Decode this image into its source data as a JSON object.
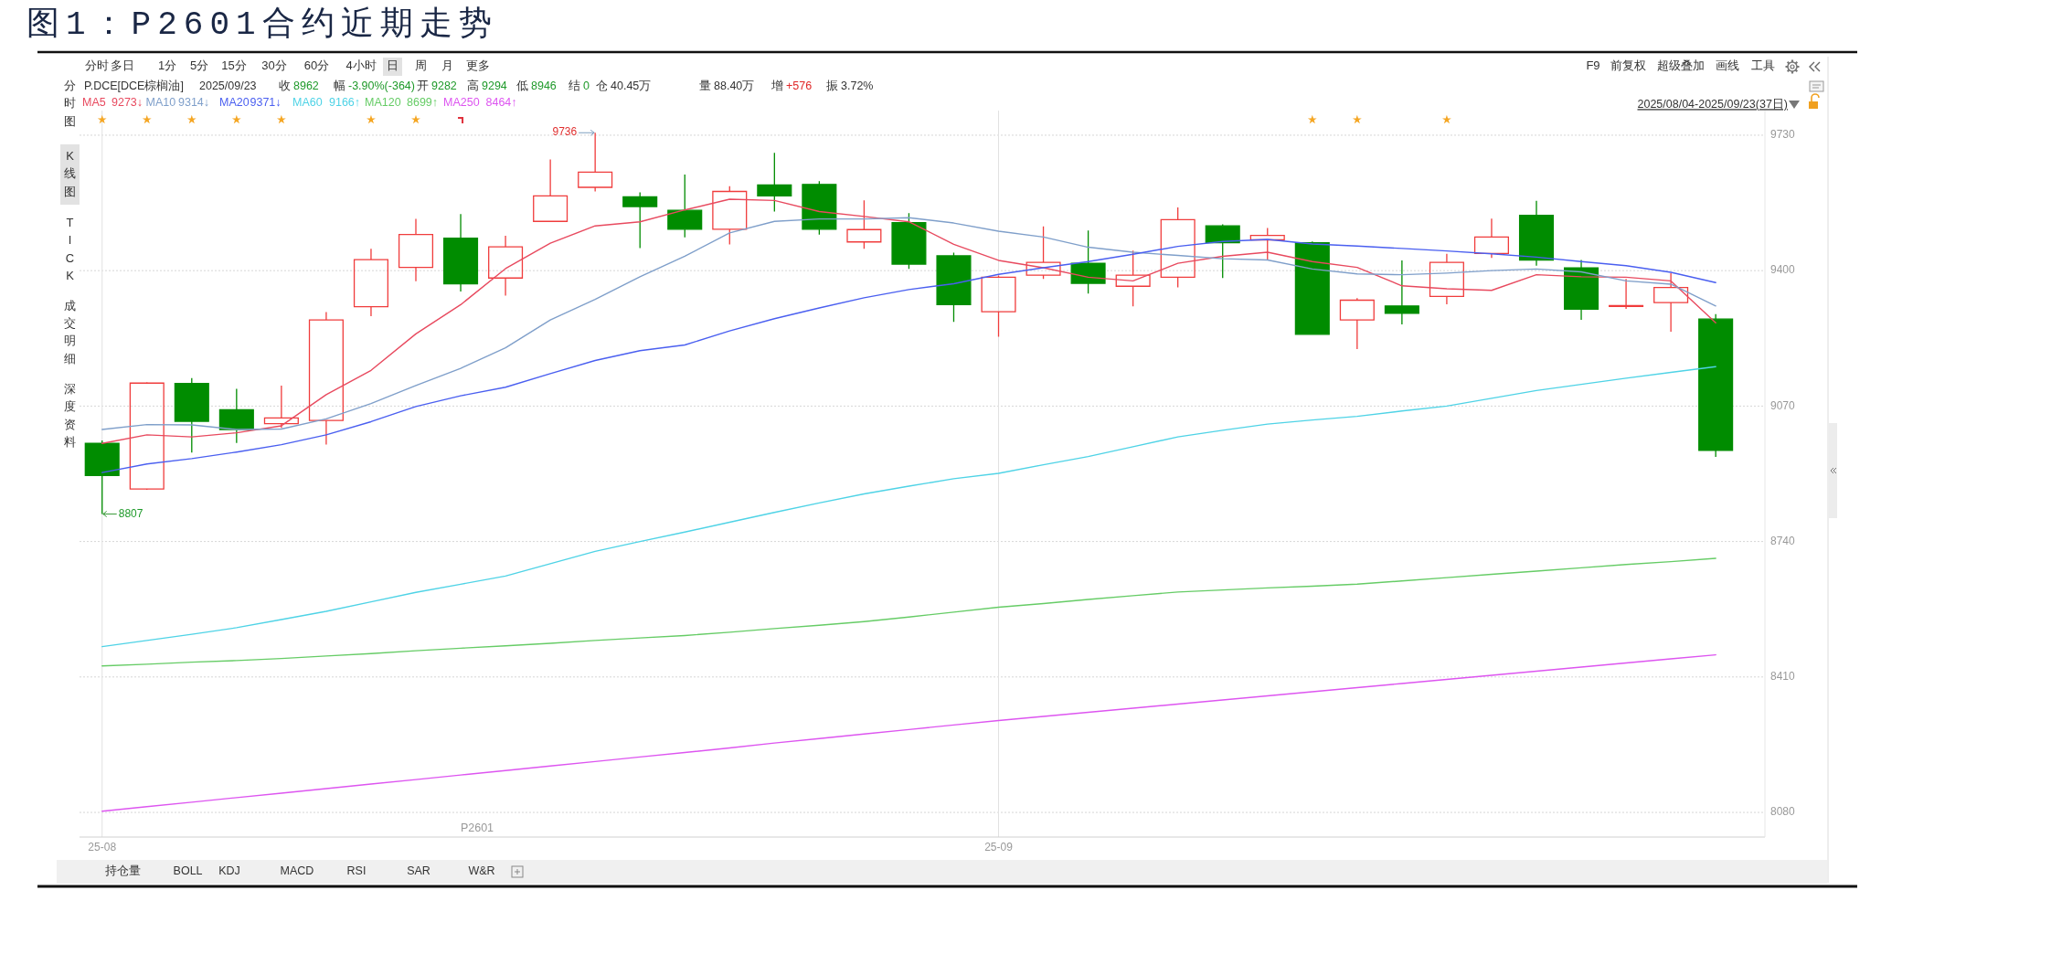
{
  "chart_data": {
    "type": "candlestick",
    "title": "图1：P2601合约近期走势",
    "categories": [
      "25-08",
      null,
      null,
      null,
      null,
      null,
      null,
      null,
      null,
      null,
      null,
      null,
      null,
      null,
      null,
      null,
      null,
      null,
      null,
      null,
      "25-09",
      null,
      null,
      null,
      null,
      null,
      null,
      null,
      null,
      null,
      null,
      null,
      null,
      null,
      null,
      null,
      null
    ],
    "ohlc": [
      [
        8979,
        8986,
        8807,
        8901
      ],
      [
        8868,
        9128,
        8866,
        9126
      ],
      [
        9125,
        9138,
        8957,
        9033
      ],
      [
        9061,
        9112,
        8980,
        9013
      ],
      [
        9027,
        9120,
        9017,
        9041
      ],
      [
        9035,
        9299,
        8976,
        9280
      ],
      [
        9312,
        9453,
        9289,
        9427
      ],
      [
        9408,
        9526,
        9374,
        9488
      ],
      [
        9479,
        9538,
        9349,
        9368
      ],
      [
        9382,
        9485,
        9339,
        9458
      ],
      [
        9520,
        9671,
        9520,
        9582
      ],
      [
        9603,
        9736,
        9593,
        9640
      ],
      [
        9580,
        9591,
        9455,
        9556
      ],
      [
        9547,
        9634,
        9481,
        9501
      ],
      [
        9501,
        9606,
        9464,
        9593
      ],
      [
        9609,
        9687,
        9544,
        9582
      ],
      [
        9610,
        9618,
        9488,
        9501
      ],
      [
        9470,
        9571,
        9453,
        9500
      ],
      [
        9517,
        9540,
        9404,
        9416
      ],
      [
        9436,
        9444,
        9275,
        9317
      ],
      [
        9300,
        9388,
        9239,
        9384
      ],
      [
        9389,
        9508,
        9380,
        9420
      ],
      [
        9418,
        9498,
        9344,
        9369
      ],
      [
        9362,
        9449,
        9313,
        9389
      ],
      [
        9384,
        9554,
        9359,
        9524
      ],
      [
        9509,
        9513,
        9382,
        9468
      ],
      [
        9475,
        9504,
        9427,
        9486
      ],
      [
        9468,
        9471,
        9245,
        9245
      ],
      [
        9280,
        9333,
        9209,
        9328
      ],
      [
        9314,
        9425,
        9269,
        9296
      ],
      [
        9337,
        9441,
        9318,
        9420
      ],
      [
        9442,
        9527,
        9431,
        9482
      ],
      [
        9535,
        9570,
        9412,
        9426
      ],
      [
        9407,
        9426,
        9280,
        9306
      ],
      [
        9313,
        9380,
        9307,
        9315
      ],
      [
        9322,
        9394,
        9251,
        9359
      ],
      [
        9282,
        9294,
        8946,
        8962
      ]
    ],
    "series": [
      {
        "name": "MA5",
        "type": "line",
        "color": "#e84a5f",
        "values": [
          8979,
          9000,
          8995,
          9005,
          9022,
          9098,
          9157,
          9246,
          9317,
          9405,
          9467,
          9509,
          9519,
          9548,
          9574,
          9571,
          9544,
          9532,
          9519,
          9464,
          9425,
          9407,
          9384,
          9375,
          9418,
          9435,
          9445,
          9422,
          9408,
          9363,
          9356,
          9352,
          9390,
          9385,
          9384,
          9375,
          9273
        ]
      },
      {
        "name": "MA10",
        "type": "line",
        "color": "#7f9fca",
        "values": [
          9013,
          9025,
          9024,
          9013,
          9014,
          9039,
          9076,
          9120,
          9162,
          9212,
          9280,
          9330,
          9385,
          9435,
          9492,
          9520,
          9526,
          9526,
          9529,
          9516,
          9496,
          9482,
          9457,
          9445,
          9437,
          9429,
          9426,
          9404,
          9392,
          9390,
          9394,
          9400,
          9404,
          9397,
          9375,
          9367,
          9314
        ]
      },
      {
        "name": "MA20",
        "type": "line",
        "color": "#4a5ff0",
        "values": [
          8908,
          8929,
          8942,
          8958,
          8976,
          9000,
          9032,
          9069,
          9095,
          9116,
          9149,
          9181,
          9205,
          9219,
          9253,
          9283,
          9309,
          9334,
          9354,
          9368,
          9391,
          9407,
          9422,
          9440,
          9459,
          9471,
          9476,
          9465,
          9460,
          9454,
          9448,
          9441,
          9433,
          9422,
          9412,
          9396,
          9371
        ]
      },
      {
        "name": "MA60",
        "type": "line",
        "color": "#4fd3e6",
        "values": [
          8484,
          8499,
          8514,
          8530,
          8550,
          8570,
          8593,
          8616,
          8636,
          8656,
          8686,
          8716,
          8740,
          8763,
          8787,
          8811,
          8834,
          8856,
          8875,
          8893,
          8906,
          8927,
          8947,
          8971,
          8995,
          9011,
          9026,
          9036,
          9045,
          9058,
          9070,
          9089,
          9108,
          9123,
          9138,
          9152,
          9166
        ]
      },
      {
        "name": "MA120",
        "type": "line",
        "color": "#66cc66",
        "values": [
          8437,
          8441,
          8446,
          8450,
          8455,
          8461,
          8467,
          8474,
          8480,
          8486,
          8492,
          8499,
          8505,
          8511,
          8519,
          8528,
          8536,
          8545,
          8556,
          8568,
          8580,
          8589,
          8599,
          8608,
          8617,
          8622,
          8627,
          8631,
          8636,
          8644,
          8652,
          8660,
          8668,
          8676,
          8684,
          8691,
          8699
        ]
      },
      {
        "name": "MA250",
        "type": "line",
        "color": "#dd55f0",
        "values": [
          8083,
          8094,
          8105,
          8116,
          8127,
          8138,
          8149,
          8160,
          8171,
          8182,
          8193,
          8204,
          8215,
          8226,
          8237,
          8249,
          8260,
          8271,
          8282,
          8293,
          8304,
          8314,
          8324,
          8334,
          8344,
          8354,
          8364,
          8374,
          8384,
          8394,
          8404,
          8414,
          8424,
          8434,
          8444,
          8454,
          8464
        ]
      }
    ],
    "ylim": [
      8020,
      9790
    ],
    "yticks": [
      8080,
      8410,
      8740,
      9070,
      9400,
      9730
    ],
    "grid": true,
    "legend": "top left",
    "annotations": [
      "分时",
      "多日",
      "1分",
      "5分",
      "15分",
      "30分",
      "60分",
      "4小时",
      "日",
      "周",
      "月",
      "更多",
      "F9",
      "前复权",
      "超级叠加",
      "画线",
      "工具",
      "P.DCE[DCE棕榈油]",
      "2025/09/23",
      "收 8962",
      "幅 -3.90%(-364)",
      "开 9282",
      "高 9294",
      "低 8946",
      "结 0",
      "仓 40.45万",
      "量 88.40万",
      "增 +576",
      "振 3.72%",
      "9273↓",
      "9314↓",
      "9371↓",
      "9166↑",
      "8699↑",
      "8464↑",
      "2025/08/04-2025/09/23(37日)",
      "分时图",
      "K线图",
      "TICK",
      "成交明细",
      "深度资料",
      "P2601",
      "持仓量",
      "BOLL",
      "KDJ",
      "MACD",
      "RSI",
      "SAR",
      "W&R",
      "9736",
      "8807"
    ]
  }
}
